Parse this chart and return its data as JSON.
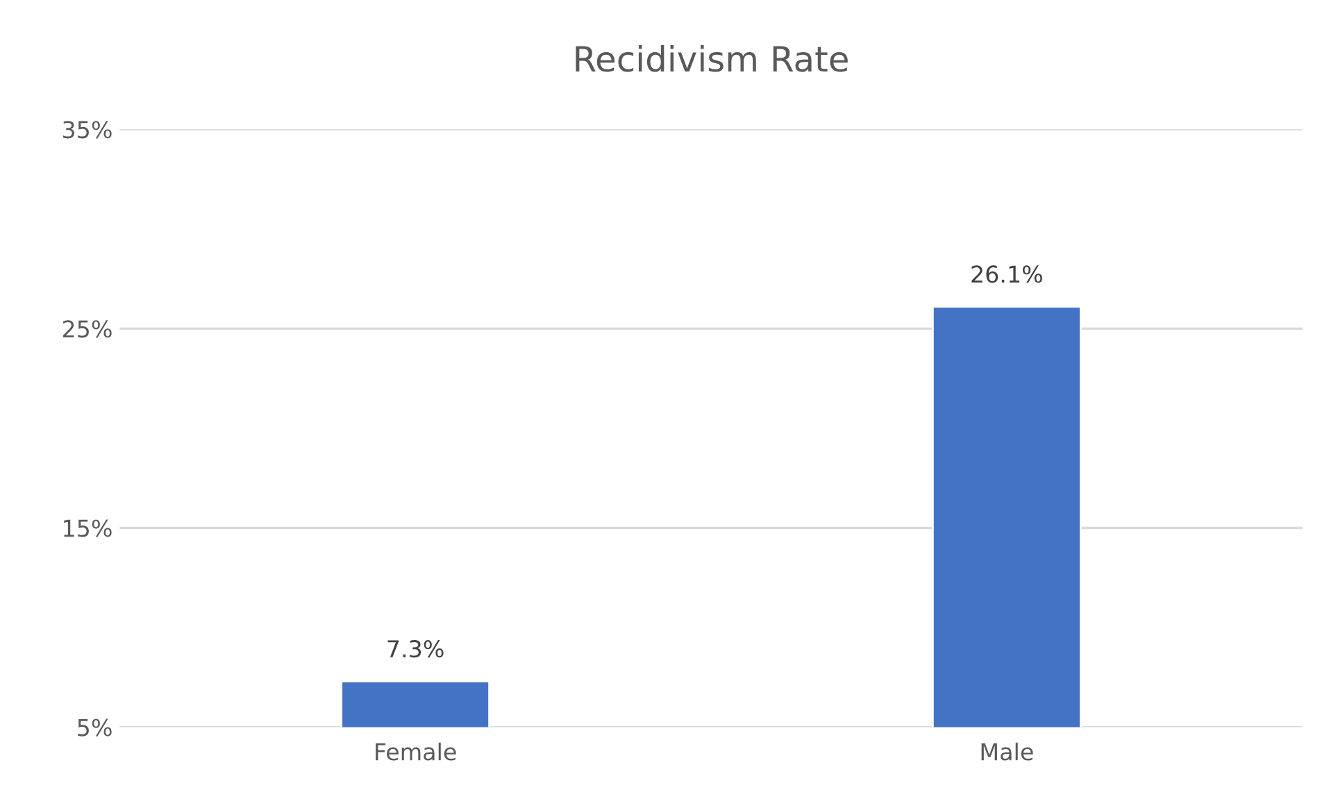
{
  "chart_data": {
    "type": "bar",
    "title": "Recidivism Rate",
    "categories": [
      "Female",
      "Male"
    ],
    "values": [
      7.3,
      26.1
    ],
    "color": "#4472c4",
    "value_labels": [
      "7.3%",
      "26.1%"
    ],
    "ylim": [
      5,
      35
    ],
    "yticks": [
      {
        "value": 5,
        "label": "5%"
      },
      {
        "value": 15,
        "label": "15%"
      },
      {
        "value": 25,
        "label": "25%"
      },
      {
        "value": 35,
        "label": "35%"
      }
    ],
    "grid": "y",
    "legend": false
  }
}
